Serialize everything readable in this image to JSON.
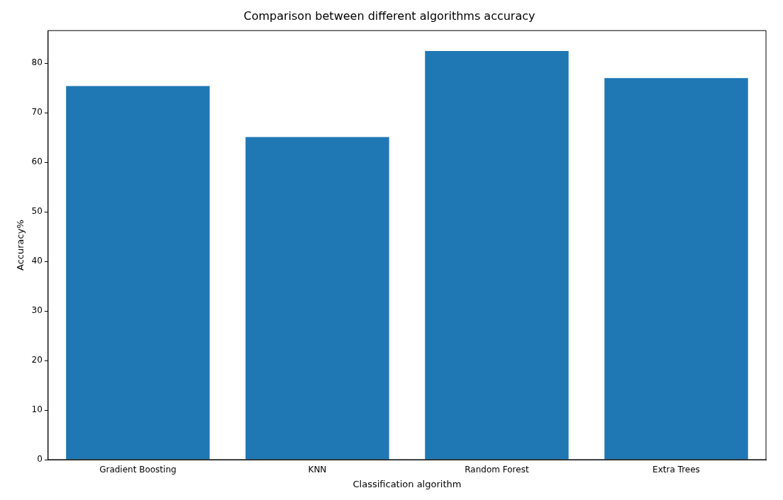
{
  "chart_data": {
    "type": "bar",
    "title": "Comparison between different algorithms accuracy",
    "xlabel": "Classification algorithm",
    "ylabel": "Accuracy%",
    "categories": [
      "Gradient Boosting",
      "KNN",
      "Random Forest",
      "Extra Trees"
    ],
    "values": [
      75.4,
      65.1,
      82.5,
      77.0
    ],
    "color": "#1f77b4",
    "ylim": [
      0,
      86.6
    ],
    "yticks": [
      0,
      10,
      20,
      30,
      40,
      50,
      60,
      70,
      80
    ],
    "grid": false,
    "legend": false
  }
}
